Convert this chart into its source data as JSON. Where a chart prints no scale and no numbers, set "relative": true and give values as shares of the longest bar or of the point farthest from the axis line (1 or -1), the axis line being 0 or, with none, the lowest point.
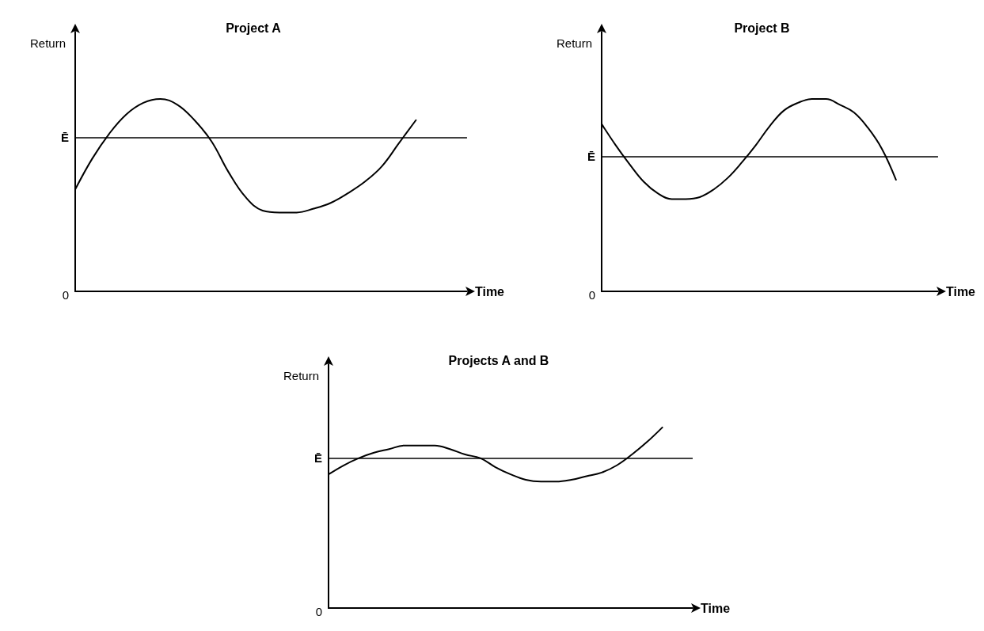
{
  "chart_data": [
    {
      "type": "line",
      "title": "Project A",
      "xlabel": "Time",
      "ylabel": "Return",
      "relative": true,
      "color": "#000000",
      "marker": "none",
      "line_style": "solid",
      "annotations": [
        "0"
      ],
      "categories": [
        null,
        null,
        null,
        null,
        null,
        null,
        null,
        null,
        null,
        null,
        null,
        null,
        null,
        null,
        null,
        null,
        null,
        null,
        null,
        null,
        null,
        null,
        null,
        null
      ],
      "values": [
        0.53,
        0.69,
        0.82,
        0.92,
        0.98,
        1.0,
        0.97,
        0.89,
        0.78,
        0.62,
        0.49,
        0.42,
        0.41,
        0.41,
        0.43,
        0.46,
        0.51,
        0.57,
        0.65,
        0.77,
        0.89,
        null,
        null,
        null
      ],
      "ref_lines": [
        {
          "axis": "y",
          "value": 0.8,
          "label": "Ē"
        }
      ]
    },
    {
      "type": "line",
      "title": "Project B",
      "xlabel": "Time",
      "ylabel": "Return",
      "relative": true,
      "color": "#000000",
      "marker": "none",
      "line_style": "solid",
      "annotations": [
        "0"
      ],
      "categories": [
        null,
        null,
        null,
        null,
        null,
        null,
        null,
        null,
        null,
        null,
        null,
        null,
        null,
        null,
        null,
        null,
        null,
        null,
        null,
        null,
        null,
        null,
        null,
        null,
        null
      ],
      "values": [
        0.87,
        0.76,
        0.66,
        0.57,
        0.51,
        0.48,
        0.48,
        0.49,
        0.53,
        0.59,
        0.67,
        0.76,
        0.86,
        0.94,
        0.98,
        1.0,
        1.0,
        0.97,
        0.93,
        0.85,
        0.74,
        0.58,
        null,
        null,
        null
      ],
      "ref_lines": [
        {
          "axis": "y",
          "value": 0.7,
          "label": "Ē"
        }
      ]
    },
    {
      "type": "line",
      "title": "Projects A and B",
      "xlabel": "Time",
      "ylabel": "Return",
      "relative": true,
      "color": "#000000",
      "marker": "none",
      "line_style": "solid",
      "annotations": [
        "0"
      ],
      "categories": [
        null,
        null,
        null,
        null,
        null,
        null,
        null,
        null,
        null,
        null,
        null,
        null,
        null,
        null,
        null,
        null,
        null,
        null,
        null,
        null,
        null,
        null,
        null,
        null,
        null
      ],
      "values": [
        0.74,
        0.79,
        0.83,
        0.86,
        0.88,
        0.9,
        0.9,
        0.9,
        0.88,
        0.85,
        0.83,
        0.78,
        0.74,
        0.71,
        0.7,
        0.7,
        0.71,
        0.73,
        0.75,
        0.79,
        0.85,
        0.92,
        1.0,
        null,
        null
      ],
      "ref_lines": [
        {
          "axis": "y",
          "value": 0.83,
          "label": "Ē"
        }
      ]
    }
  ]
}
